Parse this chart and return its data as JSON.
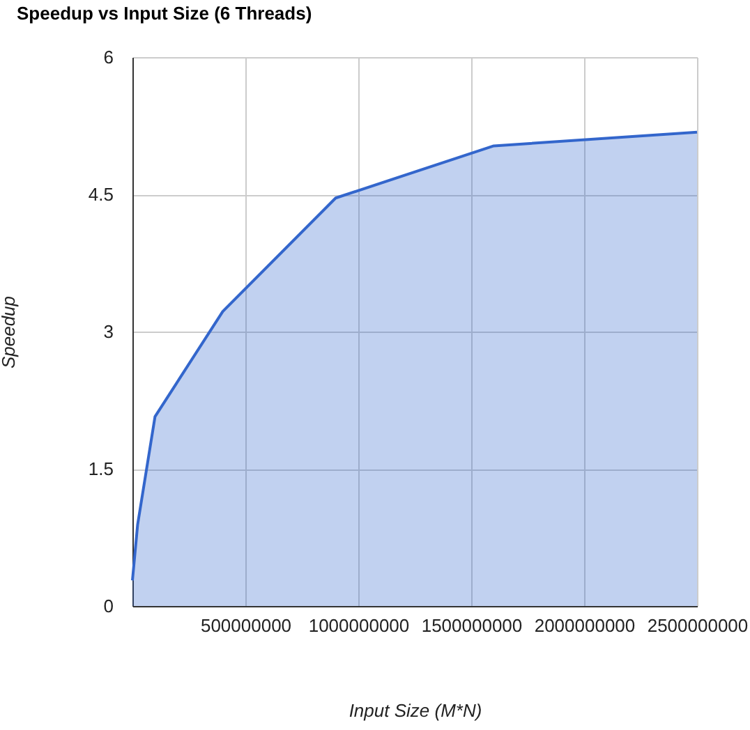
{
  "chart_data": {
    "type": "area",
    "title": "Speedup vs Input Size (6 Threads)",
    "xlabel": "Input Size (M*N)",
    "ylabel": "Speedup",
    "x": [
      0,
      23000000,
      100000000,
      400000000,
      900000000,
      1600000000,
      2500000000
    ],
    "series": [
      {
        "color": "#3366cc",
        "values": [
          0.28,
          0.89,
          2.07,
          3.22,
          4.46,
          5.03,
          5.18
        ]
      }
    ],
    "xlim": [
      0,
      2500000000
    ],
    "xticks": [
      500000000,
      1000000000,
      1500000000,
      2000000000,
      2500000000
    ],
    "ylim": [
      0,
      6
    ],
    "yticks": [
      0,
      1.5,
      3,
      4.5,
      6
    ],
    "grid": true
  }
}
